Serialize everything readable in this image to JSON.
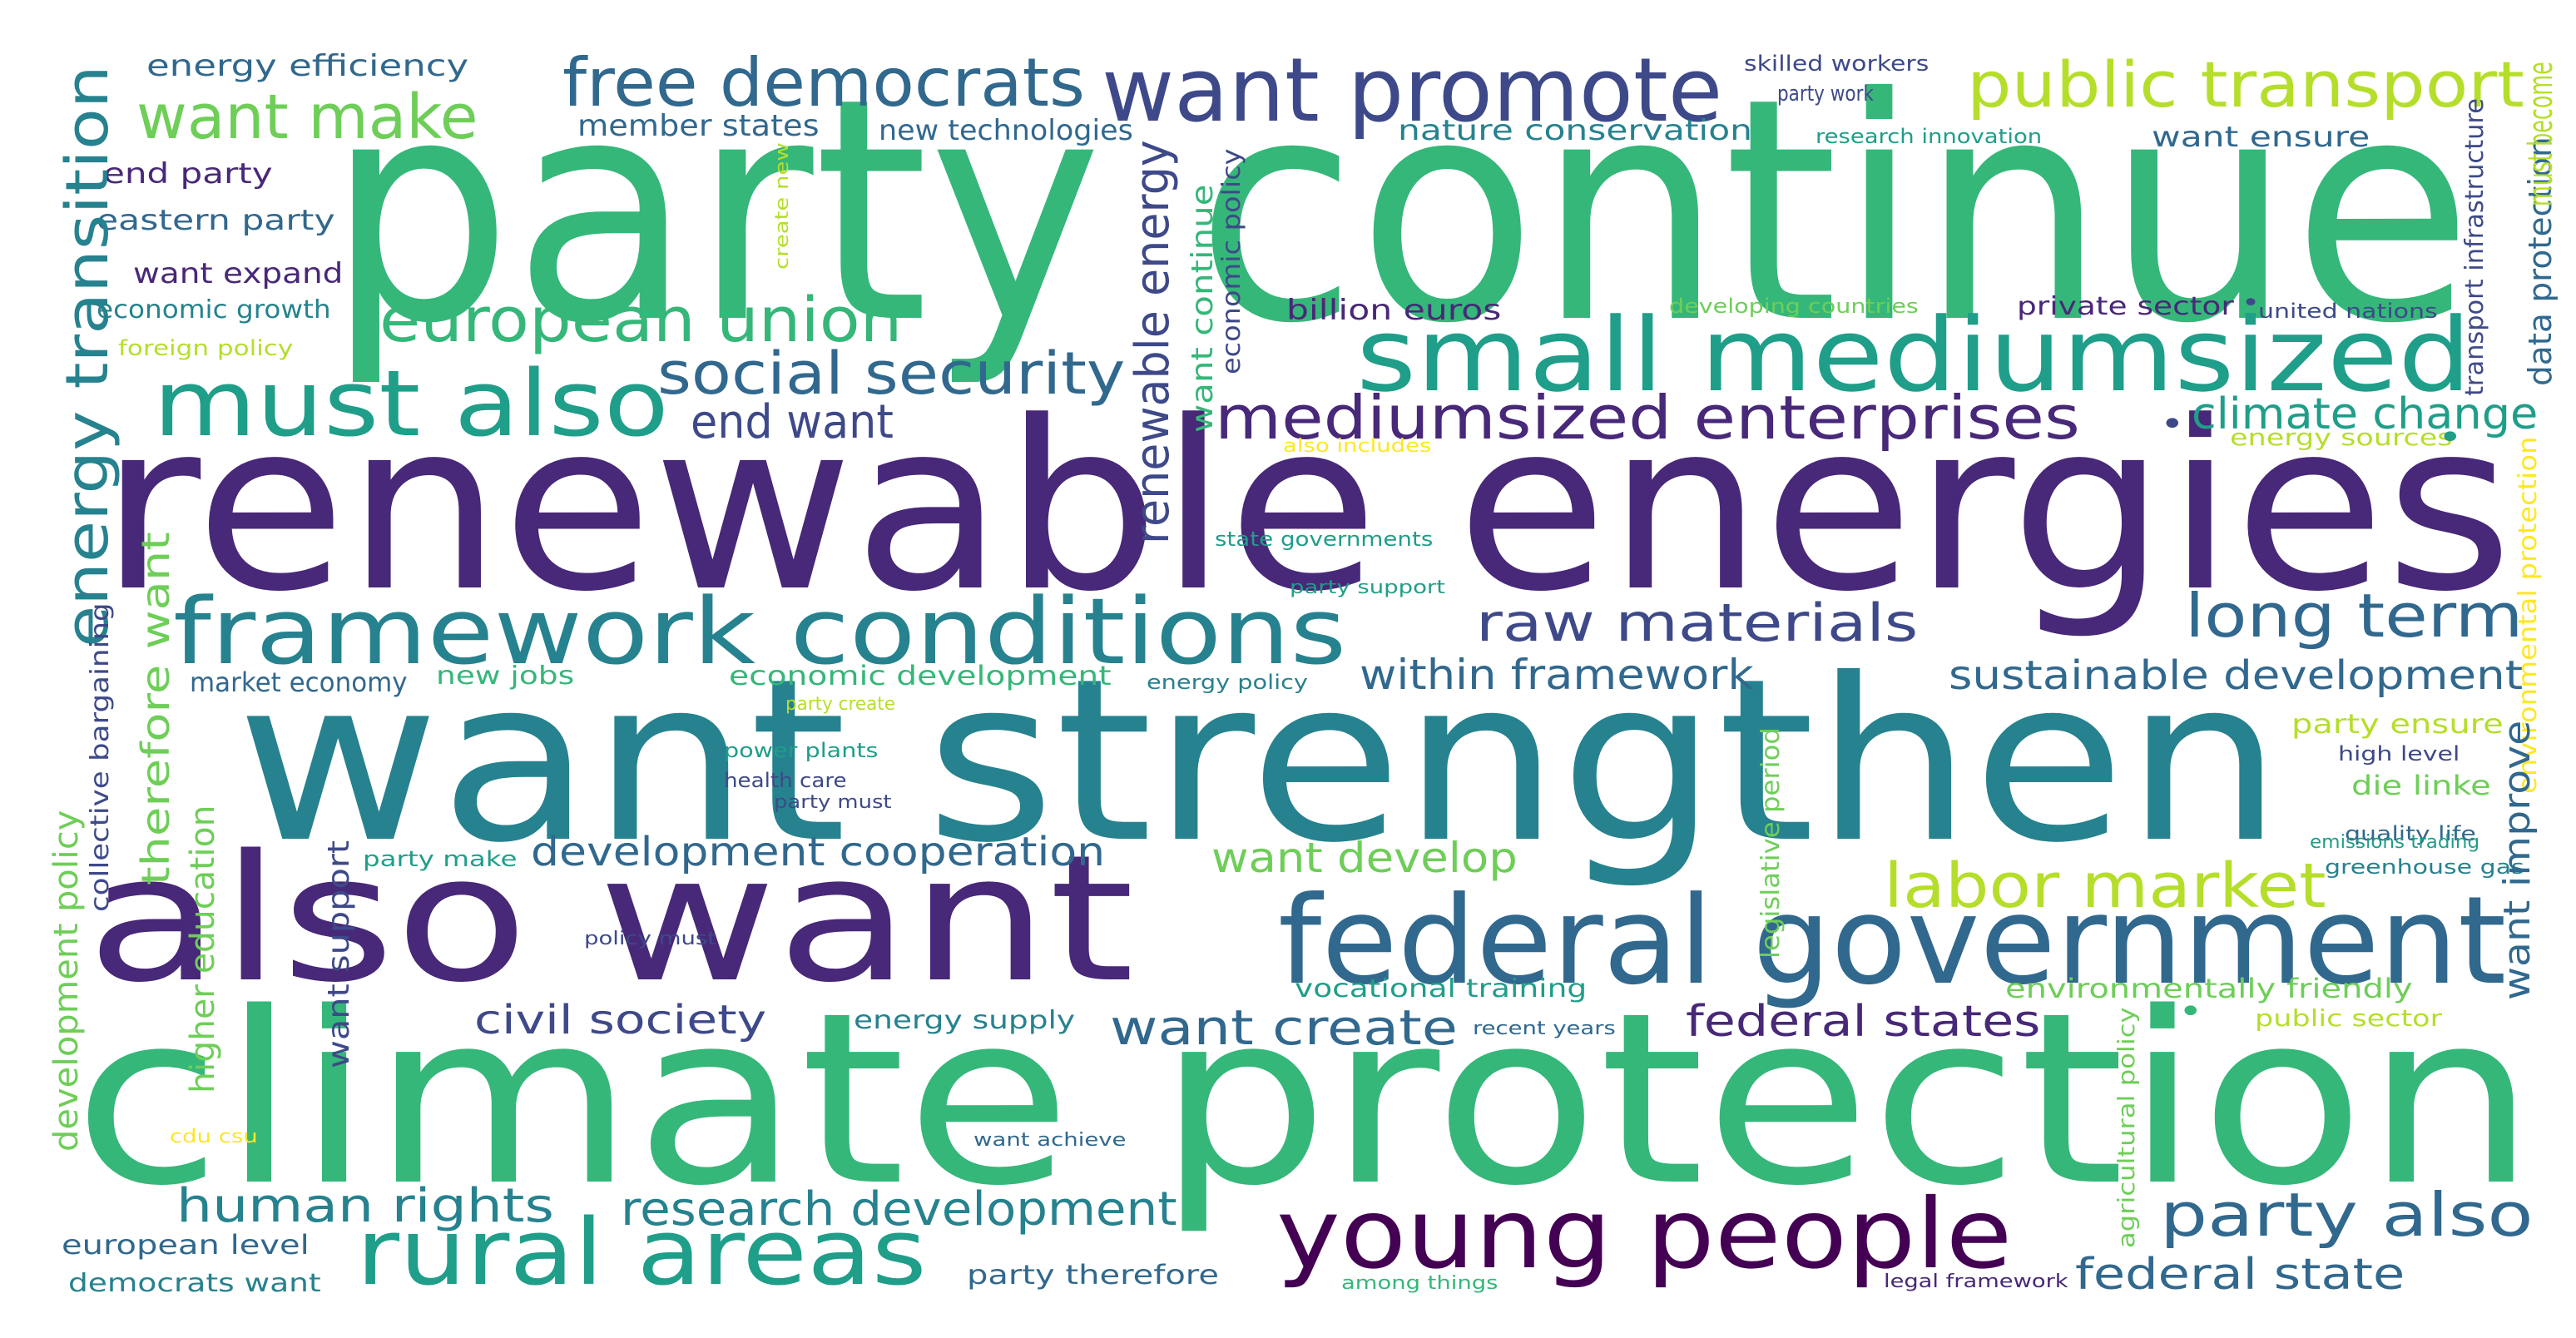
{
  "palette": {
    "background": "#ffffff",
    "dark_purple": "#482878",
    "deep_purple": "#440154",
    "purple_blue": "#3e4989",
    "blue": "#31688e",
    "teal": "#26828e",
    "green_teal": "#1f9e89",
    "green": "#35b779",
    "light_green": "#6ece58",
    "yellow_green": "#b5de2b",
    "yellow": "#fde725"
  },
  "words": [
    {
      "text": "party continue",
      "color": "#35b779"
    },
    {
      "text": "renewable energies",
      "color": "#482878"
    },
    {
      "text": "want strengthen",
      "color": "#26828e"
    },
    {
      "text": "also want",
      "color": "#482878"
    },
    {
      "text": "climate protection",
      "color": "#35b779"
    },
    {
      "text": "want promote",
      "color": "#3e4989"
    },
    {
      "text": "free democrats",
      "color": "#31688e"
    },
    {
      "text": "public transport",
      "color": "#b5de2b"
    },
    {
      "text": "want make",
      "color": "#6ece58"
    },
    {
      "text": "small mediumsized",
      "color": "#1f9e89"
    },
    {
      "text": "european union",
      "color": "#35b779"
    },
    {
      "text": "must also",
      "color": "#1f9e89"
    },
    {
      "text": "social security",
      "color": "#31688e"
    },
    {
      "text": "mediumsized enterprises",
      "color": "#482878"
    },
    {
      "text": "climate change",
      "color": "#1f9e89"
    },
    {
      "text": "end want",
      "color": "#3e4989"
    },
    {
      "text": "framework conditions",
      "color": "#26828e"
    },
    {
      "text": "raw materials",
      "color": "#3e4989"
    },
    {
      "text": "long term",
      "color": "#31688e"
    },
    {
      "text": "within framework",
      "color": "#31688e"
    },
    {
      "text": "sustainable development",
      "color": "#31688e"
    },
    {
      "text": "federal government",
      "color": "#31688e"
    },
    {
      "text": "labor market",
      "color": "#b5de2b"
    },
    {
      "text": "young people",
      "color": "#440154"
    },
    {
      "text": "rural areas",
      "color": "#1f9e89"
    },
    {
      "text": "party also",
      "color": "#31688e"
    },
    {
      "text": "human rights",
      "color": "#26828e"
    },
    {
      "text": "research development",
      "color": "#26828e"
    },
    {
      "text": "development cooperation",
      "color": "#31688e"
    },
    {
      "text": "want develop",
      "color": "#6ece58"
    },
    {
      "text": "civil society",
      "color": "#3e4989"
    },
    {
      "text": "want create",
      "color": "#31688e"
    },
    {
      "text": "federal states",
      "color": "#482878"
    },
    {
      "text": "federal state",
      "color": "#31688e"
    },
    {
      "text": "energy efficiency",
      "color": "#31688e"
    },
    {
      "text": "member states",
      "color": "#31688e"
    },
    {
      "text": "new technologies",
      "color": "#31688e"
    },
    {
      "text": "nature conservation",
      "color": "#26828e"
    },
    {
      "text": "skilled workers",
      "color": "#3e4989"
    },
    {
      "text": "party work",
      "color": "#3e4989"
    },
    {
      "text": "research innovation",
      "color": "#1f9e89"
    },
    {
      "text": "want ensure",
      "color": "#31688e"
    },
    {
      "text": "end party",
      "color": "#482878"
    },
    {
      "text": "eastern party",
      "color": "#31688e"
    },
    {
      "text": "want expand",
      "color": "#482878"
    },
    {
      "text": "economic growth",
      "color": "#26828e"
    },
    {
      "text": "foreign policy",
      "color": "#b5de2b"
    },
    {
      "text": "billion euros",
      "color": "#482878"
    },
    {
      "text": "developing countries",
      "color": "#6ece58"
    },
    {
      "text": "private sector",
      "color": "#482878"
    },
    {
      "text": "united nations",
      "color": "#3e4989"
    },
    {
      "text": "energy sources",
      "color": "#b5de2b"
    },
    {
      "text": "also includes",
      "color": "#fde725"
    },
    {
      "text": "state governments",
      "color": "#1f9e89"
    },
    {
      "text": "party support",
      "color": "#1f9e89"
    },
    {
      "text": "market economy",
      "color": "#31688e"
    },
    {
      "text": "new jobs",
      "color": "#35b779"
    },
    {
      "text": "economic development",
      "color": "#35b779"
    },
    {
      "text": "energy policy",
      "color": "#26828e"
    },
    {
      "text": "party create",
      "color": "#b5de2b"
    },
    {
      "text": "power plants",
      "color": "#1f9e89"
    },
    {
      "text": "health care",
      "color": "#3e4989"
    },
    {
      "text": "party must",
      "color": "#3e4989"
    },
    {
      "text": "party ensure",
      "color": "#b5de2b"
    },
    {
      "text": "high level",
      "color": "#3e4989"
    },
    {
      "text": "die linke",
      "color": "#6ece58"
    },
    {
      "text": "quality life",
      "color": "#31688e"
    },
    {
      "text": "emissions trading",
      "color": "#1f9e89"
    },
    {
      "text": "greenhouse gas",
      "color": "#26828e"
    },
    {
      "text": "party make",
      "color": "#1f9e89"
    },
    {
      "text": "policy must",
      "color": "#3e4989"
    },
    {
      "text": "vocational training",
      "color": "#1f9e89"
    },
    {
      "text": "energy supply",
      "color": "#26828e"
    },
    {
      "text": "recent years",
      "color": "#31688e"
    },
    {
      "text": "environmentally friendly",
      "color": "#6ece58"
    },
    {
      "text": "public sector",
      "color": "#b5de2b"
    },
    {
      "text": "cdu csu",
      "color": "#fde725"
    },
    {
      "text": "want achieve",
      "color": "#31688e"
    },
    {
      "text": "european level",
      "color": "#31688e"
    },
    {
      "text": "democrats want",
      "color": "#26828e"
    },
    {
      "text": "party therefore",
      "color": "#31688e"
    },
    {
      "text": "among things",
      "color": "#35b779"
    },
    {
      "text": "legal framework",
      "color": "#482878"
    },
    {
      "text": "energy transition",
      "color": "#26828e"
    },
    {
      "text": "therefore want",
      "color": "#6ece58"
    },
    {
      "text": "collective bargaining",
      "color": "#3e4989"
    },
    {
      "text": "development policy",
      "color": "#6ece58"
    },
    {
      "text": "higher education",
      "color": "#6ece58"
    },
    {
      "text": "want support",
      "color": "#3e4989"
    },
    {
      "text": "create new",
      "color": "#b5de2b"
    },
    {
      "text": "renewable energy",
      "color": "#3e4989"
    },
    {
      "text": "want continue",
      "color": "#35b779"
    },
    {
      "text": "economic policy",
      "color": "#3e4989"
    },
    {
      "text": "legislative period",
      "color": "#6ece58"
    },
    {
      "text": "agricultural policy",
      "color": "#6ece58"
    },
    {
      "text": "transport infrastructure",
      "color": "#3e4989"
    },
    {
      "text": "data protection",
      "color": "#31688e"
    },
    {
      "text": "must become",
      "color": "#b5de2b"
    },
    {
      "text": "environmental protection",
      "color": "#fde725"
    },
    {
      "text": "want improve",
      "color": "#31688e"
    },
    {
      "text": "•",
      "color": "#3e4989"
    },
    {
      "text": "•",
      "color": "#3e4989"
    },
    {
      "text": "•",
      "color": "#35b779"
    },
    {
      "text": "•",
      "color": "#1f9e89"
    }
  ]
}
